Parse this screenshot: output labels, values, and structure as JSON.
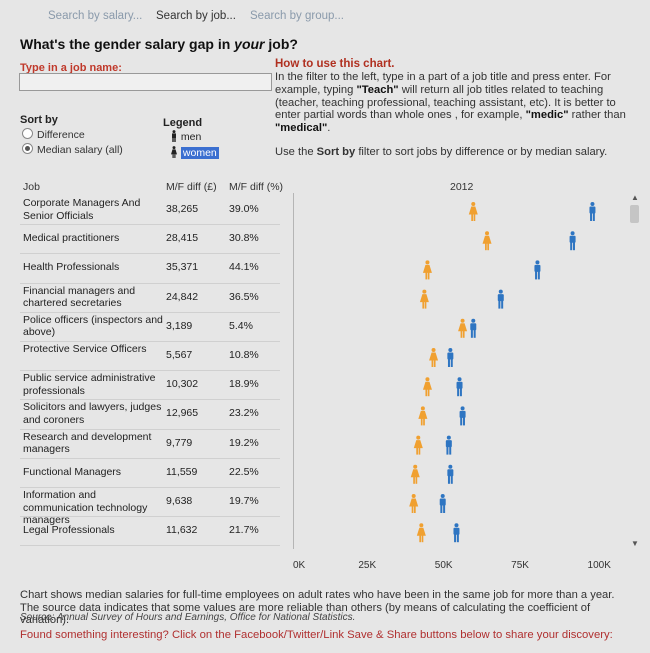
{
  "tabs": [
    {
      "label": "Search by salary..."
    },
    {
      "label": "Search by job..."
    },
    {
      "label": "Search by group..."
    }
  ],
  "title_pre": "What's the gender salary gap in ",
  "title_em": "your",
  "title_post": " job?",
  "filter": {
    "label": "Type in a job name:",
    "value": ""
  },
  "howto": {
    "title": "How to use this chart.",
    "p1a": "In the filter to the left, type in a part of a job title and press enter. For example, typing ",
    "p1b": "\"Teach\"",
    "p1c": " will return all job titles related to teaching (teacher, teaching professional, teaching assistant, etc). It is better to enter partial words than whole ones , for example, ",
    "p1d": "\"medic\"",
    "p1e": " rather than ",
    "p1f": "\"medical\"",
    "p1g": ".",
    "p2a": "Use the ",
    "p2b": "Sort by",
    "p2c": " filter to sort jobs by difference or by median salary."
  },
  "sort": {
    "title": "Sort by",
    "options": [
      "Difference",
      "Median salary (all)"
    ],
    "selected": 1
  },
  "legend": {
    "title": "Legend",
    "men": "men",
    "women": "women"
  },
  "colors": {
    "men": "#2e75c2",
    "women": "#f0a030"
  },
  "table": {
    "headers": {
      "job": "Job",
      "diff": "M/F diff (£)",
      "pct": "M/F diff (%)",
      "year": "2012"
    }
  },
  "chart_data": {
    "type": "scatter",
    "series": [
      {
        "name": "men"
      },
      {
        "name": "women"
      }
    ],
    "rows": [
      {
        "job": "Corporate Managers And Senior Officials",
        "diff": "38,265",
        "pct": "39.0%",
        "women": 59000,
        "men": 98000
      },
      {
        "job": "Medical practitioners",
        "diff": "28,415",
        "pct": "30.8%",
        "women": 63500,
        "men": 91500
      },
      {
        "job": "Health Professionals",
        "diff": "35,371",
        "pct": "44.1%",
        "women": 44000,
        "men": 80000
      },
      {
        "job": "Financial managers and chartered secretaries",
        "diff": "24,842",
        "pct": "36.5%",
        "women": 43000,
        "men": 68000
      },
      {
        "job": "Police officers (inspectors and above)",
        "diff": "3,189",
        "pct": "5.4%",
        "women": 55500,
        "men": 59000
      },
      {
        "job": "Protective Service Officers",
        "diff": "5,567",
        "pct": "10.8%",
        "women": 46000,
        "men": 51500
      },
      {
        "job": "Public service administrative professionals",
        "diff": "10,302",
        "pct": "18.9%",
        "women": 44000,
        "men": 54500
      },
      {
        "job": "Solicitors and lawyers, judges and coroners",
        "diff": "12,965",
        "pct": "23.2%",
        "women": 42500,
        "men": 55500
      },
      {
        "job": "Research and development managers",
        "diff": "9,779",
        "pct": "19.2%",
        "women": 41000,
        "men": 51000
      },
      {
        "job": "Functional Managers",
        "diff": "11,559",
        "pct": "22.5%",
        "women": 40000,
        "men": 51500
      },
      {
        "job": "Information and communication technology managers",
        "diff": "9,638",
        "pct": "19.7%",
        "women": 39500,
        "men": 49000
      },
      {
        "job": "Legal Professionals",
        "diff": "11,632",
        "pct": "21.7%",
        "women": 42000,
        "men": 53500
      }
    ],
    "xlim": [
      0,
      108000
    ],
    "xticks": [
      "0K",
      "25K",
      "50K",
      "75K",
      "100K"
    ],
    "xtick_values": [
      0,
      25000,
      50000,
      75000,
      100000
    ]
  },
  "footer": {
    "note": "Chart shows median salaries for full-time employees on adult rates who have been in the same job for more than a year. The source data indicates that some values are more reliable than others (by means of calculating the coefficient of variation).",
    "source": "Source: Annual Survey of Hours and Earnings, Office for National Statistics.",
    "cta": "Found something interesting? Click on the Facebook/Twitter/Link Save & Share buttons below to share your discovery:"
  }
}
